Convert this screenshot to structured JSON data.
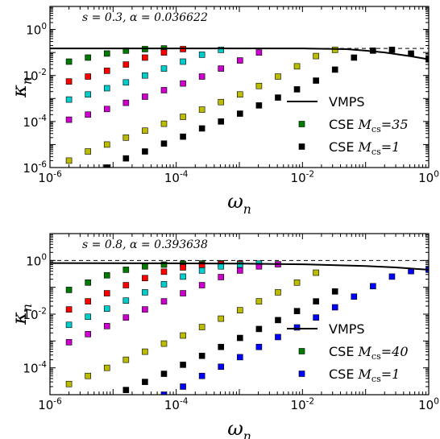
{
  "chart_data": [
    {
      "type": "scatter",
      "annotation": "s = 0.3, α = 0.036622",
      "xlabel": "ω_n",
      "ylabel": "κ_n",
      "xscale": "log",
      "yscale": "log",
      "xlim": [
        1e-06,
        1
      ],
      "ylim": [
        1e-06,
        10
      ],
      "x_tick_labels": [
        "10^-6",
        "10^-4",
        "10^-2",
        "10^0"
      ],
      "y_tick_labels": [
        "10^-6",
        "10^-4",
        "10^-2",
        "10^0"
      ],
      "legend_position": "lower-right",
      "legend": [
        {
          "label": "VMPS",
          "kind": "line",
          "color": "#000000"
        },
        {
          "label": "CSE M_cs=35",
          "kind": "marker",
          "color": "#007a00"
        },
        {
          "label": "CSE M_cs=1",
          "kind": "marker",
          "color": "#000000"
        }
      ],
      "dashed_reference_y": 0.15,
      "vmps_line": {
        "x": [
          1e-06,
          0.001,
          0.01,
          0.05,
          0.1,
          0.2,
          0.5,
          1
        ],
        "y": [
          0.15,
          0.15,
          0.15,
          0.14,
          0.12,
          0.1,
          0.07,
          0.05
        ]
      },
      "series": [
        {
          "color": "#007a00",
          "x": [
            2e-06,
            4e-06,
            8e-06,
            1.6e-05,
            3.2e-05,
            6.4e-05
          ],
          "y": [
            0.04,
            0.06,
            0.09,
            0.12,
            0.14,
            0.15
          ]
        },
        {
          "color": "#ff0000",
          "x": [
            2e-06,
            4e-06,
            8e-06,
            1.6e-05,
            3.2e-05,
            6.4e-05,
            0.000128
          ],
          "y": [
            0.0055,
            0.009,
            0.016,
            0.03,
            0.06,
            0.1,
            0.14
          ]
        },
        {
          "color": "#00cccc",
          "x": [
            2e-06,
            4e-06,
            8e-06,
            1.6e-05,
            3.2e-05,
            6.4e-05,
            0.000128,
            0.000256,
            0.000512
          ],
          "y": [
            0.0009,
            0.0015,
            0.0028,
            0.005,
            0.01,
            0.02,
            0.04,
            0.08,
            0.13
          ]
        },
        {
          "color": "#cc00cc",
          "x": [
            2e-06,
            4e-06,
            8e-06,
            1.6e-05,
            3.2e-05,
            6.4e-05,
            0.000128,
            0.000256,
            0.000512,
            0.001024,
            0.002048
          ],
          "y": [
            0.00012,
            0.0002,
            0.00035,
            0.00065,
            0.0012,
            0.0023,
            0.0045,
            0.009,
            0.02,
            0.045,
            0.1
          ]
        },
        {
          "color": "#bbbb00",
          "x": [
            2e-06,
            4e-06,
            8e-06,
            1.6e-05,
            3.2e-05,
            6.4e-05,
            0.000128,
            0.000256,
            0.000512,
            0.001024,
            0.002048,
            0.004096,
            0.008192,
            0.016384,
            0.032768
          ],
          "y": [
            2e-06,
            5e-06,
            1e-05,
            2e-05,
            4e-05,
            8e-05,
            0.00016,
            0.00033,
            0.0007,
            0.0015,
            0.0035,
            0.009,
            0.025,
            0.07,
            0.13
          ]
        },
        {
          "color": "#000000",
          "x": [
            8e-06,
            1.6e-05,
            3.2e-05,
            6.4e-05,
            0.000128,
            0.000256,
            0.000512,
            0.001024,
            0.002048,
            0.004096,
            0.008192,
            0.016384,
            0.032768,
            0.065536,
            0.131072,
            0.262144,
            0.524288,
            1
          ],
          "y": [
            1e-06,
            2.5e-06,
            5e-06,
            1.1e-05,
            2.2e-05,
            5e-05,
            0.0001,
            0.00022,
            0.0005,
            0.0011,
            0.0025,
            0.006,
            0.018,
            0.06,
            0.12,
            0.13,
            0.09,
            0.05
          ]
        }
      ]
    },
    {
      "type": "scatter",
      "annotation": "s = 0.8, α = 0.393638",
      "xlabel": "ω_n",
      "ylabel": "κ_n",
      "xscale": "log",
      "yscale": "log",
      "xlim": [
        1e-06,
        1
      ],
      "ylim": [
        1e-05,
        10
      ],
      "x_tick_labels": [
        "10^-6",
        "10^-4",
        "10^-2",
        "10^0"
      ],
      "y_tick_labels": [
        "10^-4",
        "10^-2",
        "10^0"
      ],
      "legend_position": "lower-right",
      "legend": [
        {
          "label": "VMPS",
          "kind": "line",
          "color": "#000000"
        },
        {
          "label": "CSE M_cs=40",
          "kind": "marker",
          "color": "#007a00"
        },
        {
          "label": "CSE M_cs=1",
          "kind": "marker",
          "color": "#0000ff"
        }
      ],
      "dashed_reference_y": 1,
      "vmps_line": {
        "x": [
          1e-06,
          0.0001,
          0.001,
          0.01,
          0.1,
          0.3,
          1
        ],
        "y": [
          0.8,
          0.78,
          0.76,
          0.72,
          0.62,
          0.55,
          0.45
        ]
      },
      "series": [
        {
          "color": "#007a00",
          "x": [
            2e-06,
            4e-06,
            8e-06,
            1.6e-05,
            3.2e-05,
            6.4e-05,
            0.000128,
            0.000256,
            0.000512
          ],
          "y": [
            0.08,
            0.15,
            0.28,
            0.45,
            0.6,
            0.7,
            0.75,
            0.77,
            0.78
          ]
        },
        {
          "color": "#ff0000",
          "x": [
            2e-06,
            4e-06,
            8e-06,
            1.6e-05,
            3.2e-05,
            6.4e-05,
            0.000128,
            0.000256,
            0.000512,
            0.001024
          ],
          "y": [
            0.015,
            0.03,
            0.06,
            0.12,
            0.22,
            0.38,
            0.55,
            0.68,
            0.74,
            0.77
          ]
        },
        {
          "color": "#00cccc",
          "x": [
            2e-06,
            4e-06,
            8e-06,
            1.6e-05,
            3.2e-05,
            6.4e-05,
            0.000128,
            0.000256,
            0.000512,
            0.001024,
            0.002048
          ],
          "y": [
            0.004,
            0.008,
            0.016,
            0.032,
            0.065,
            0.13,
            0.25,
            0.42,
            0.6,
            0.7,
            0.76
          ]
        },
        {
          "color": "#cc00cc",
          "x": [
            2e-06,
            4e-06,
            8e-06,
            1.6e-05,
            3.2e-05,
            6.4e-05,
            0.000128,
            0.000256,
            0.000512,
            0.001024,
            0.002048,
            0.004096
          ],
          "y": [
            0.0009,
            0.0018,
            0.0036,
            0.0075,
            0.015,
            0.03,
            0.06,
            0.12,
            0.24,
            0.42,
            0.6,
            0.72
          ]
        },
        {
          "color": "#bbbb00",
          "x": [
            2e-06,
            4e-06,
            8e-06,
            1.6e-05,
            3.2e-05,
            6.4e-05,
            0.000128,
            0.000256,
            0.000512,
            0.001024,
            0.002048,
            0.004096,
            0.008192,
            0.016384
          ],
          "y": [
            2.5e-05,
            5e-05,
            0.0001,
            0.0002,
            0.0004,
            0.0008,
            0.0016,
            0.0033,
            0.0068,
            0.014,
            0.03,
            0.065,
            0.15,
            0.35
          ]
        },
        {
          "color": "#000000",
          "x": [
            1.6e-05,
            3.2e-05,
            6.4e-05,
            0.000128,
            0.000256,
            0.000512,
            0.001024,
            0.002048,
            0.004096,
            0.008192,
            0.016384,
            0.032768
          ],
          "y": [
            1.5e-05,
            3e-05,
            6e-05,
            0.00013,
            0.00028,
            0.0006,
            0.0013,
            0.0028,
            0.006,
            0.013,
            0.03,
            0.07
          ]
        },
        {
          "color": "#0000ff",
          "x": [
            6.4e-05,
            0.000128,
            0.000256,
            0.000512,
            0.001024,
            0.002048,
            0.004096,
            0.008192,
            0.016384,
            0.032768,
            0.065536,
            0.131072,
            0.262144,
            0.524288,
            1
          ],
          "y": [
            1e-05,
            2e-05,
            5e-05,
            0.00011,
            0.00025,
            0.0006,
            0.0014,
            0.0032,
            0.0075,
            0.018,
            0.045,
            0.11,
            0.25,
            0.4,
            0.45
          ]
        }
      ]
    }
  ]
}
